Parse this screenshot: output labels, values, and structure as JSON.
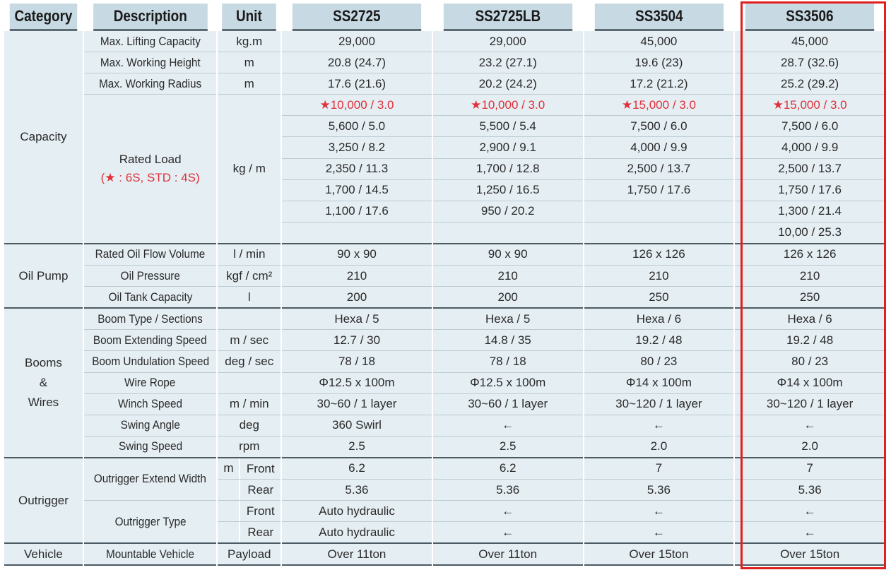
{
  "header": {
    "category": "Category",
    "description": "Description",
    "unit": "Unit",
    "models": [
      "SS2725",
      "SS2725LB",
      "SS3504",
      "SS3506"
    ]
  },
  "capacity": {
    "category": "Capacity",
    "max_lifting": {
      "label": "Max. Lifting Capacity",
      "unit": "kg.m",
      "values": [
        "29,000",
        "29,000",
        "45,000",
        "45,000"
      ]
    },
    "max_height": {
      "label": "Max. Working Height",
      "unit": "m",
      "values": [
        "20.8 (24.7)",
        "23.2 (27.1)",
        "19.6 (23)",
        "28.7 (32.6)"
      ]
    },
    "max_radius": {
      "label": "Max. Working Radius",
      "unit": "m",
      "values": [
        "17.6 (21.6)",
        "20.2 (24.2)",
        "17.2 (21.2)",
        "25.2 (29.2)"
      ]
    },
    "rated_load": {
      "label": "Rated Load",
      "note": "(★ : 6S, STD : 4S)",
      "unit": "kg / m",
      "rows": [
        [
          "★10,000 / 3.0",
          "★10,000 / 3.0",
          "★15,000 / 3.0",
          "★15,000 / 3.0"
        ],
        [
          "5,600 / 5.0",
          "5,500 / 5.4",
          "7,500 / 6.0",
          "7,500 / 6.0"
        ],
        [
          "3,250 / 8.2",
          "2,900 / 9.1",
          "4,000 / 9.9",
          "4,000 / 9.9"
        ],
        [
          "2,350 / 11.3",
          "1,700 / 12.8",
          "2,500 / 13.7",
          "2,500 / 13.7"
        ],
        [
          "1,700 / 14.5",
          "1,250 / 16.5",
          "1,750 / 17.6",
          "1,750 / 17.6"
        ],
        [
          "1,100 / 17.6",
          "950 / 20.2",
          "",
          "1,300 / 21.4"
        ],
        [
          "",
          "",
          "",
          "10,00 / 25.3"
        ]
      ]
    }
  },
  "oil_pump": {
    "category": "Oil Pump",
    "rows": [
      {
        "label": "Rated Oil Flow Volume",
        "unit": "l / min",
        "values": [
          "90 x 90",
          "90 x 90",
          "126 x 126",
          "126 x 126"
        ]
      },
      {
        "label": "Oil Pressure",
        "unit": "kgf / cm²",
        "values": [
          "210",
          "210",
          "210",
          "210"
        ]
      },
      {
        "label": "Oil Tank Capacity",
        "unit": "l",
        "values": [
          "200",
          "200",
          "250",
          "250"
        ]
      }
    ]
  },
  "booms": {
    "category_lines": [
      "Booms",
      "&",
      "Wires"
    ],
    "rows": [
      {
        "label": "Boom Type / Sections",
        "unit": "",
        "values": [
          "Hexa / 5",
          "Hexa / 5",
          "Hexa / 6",
          "Hexa / 6"
        ]
      },
      {
        "label": "Boom Extending Speed",
        "unit": "m / sec",
        "values": [
          "12.7 / 30",
          "14.8 / 35",
          "19.2 / 48",
          "19.2 / 48"
        ]
      },
      {
        "label": "Boom Undulation Speed",
        "unit": "deg / sec",
        "values": [
          "78 / 18",
          "78 / 18",
          "80 / 23",
          "80 / 23"
        ]
      },
      {
        "label": "Wire Rope",
        "unit": "",
        "values": [
          "Φ12.5 x 100m",
          "Φ12.5 x 100m",
          "Φ14 x 100m",
          "Φ14 x 100m"
        ]
      },
      {
        "label": "Winch Speed",
        "unit": "m / min",
        "values": [
          "30~60 / 1 layer",
          "30~60 / 1 layer",
          "30~120 / 1 layer",
          "30~120 / 1 layer"
        ]
      },
      {
        "label": "Swing Angle",
        "unit": "deg",
        "values": [
          "360 Swirl",
          "←",
          "←",
          "←"
        ]
      },
      {
        "label": "Swing Speed",
        "unit": "rpm",
        "values": [
          "2.5",
          "2.5",
          "2.0",
          "2.0"
        ]
      }
    ]
  },
  "outrigger": {
    "category": "Outrigger",
    "extend_width": {
      "label": "Outrigger Extend Width",
      "unit": "m",
      "front": {
        "label": "Front",
        "values": [
          "6.2",
          "6.2",
          "7",
          "7"
        ]
      },
      "rear": {
        "label": "Rear",
        "values": [
          "5.36",
          "5.36",
          "5.36",
          "5.36"
        ]
      }
    },
    "type": {
      "label": "Outrigger Type",
      "front": {
        "label": "Front",
        "values": [
          "Auto hydraulic",
          "←",
          "←",
          "←"
        ]
      },
      "rear": {
        "label": "Rear",
        "values": [
          "Auto hydraulic",
          "←",
          "←",
          "←"
        ]
      }
    }
  },
  "vehicle": {
    "category": "Vehicle",
    "label": "Mountable Vehicle",
    "unit": "Payload",
    "values": [
      "Over 11ton",
      "Over 11ton",
      "Over 15ton",
      "Over 15ton"
    ]
  },
  "highlight_color": "#e0201e"
}
